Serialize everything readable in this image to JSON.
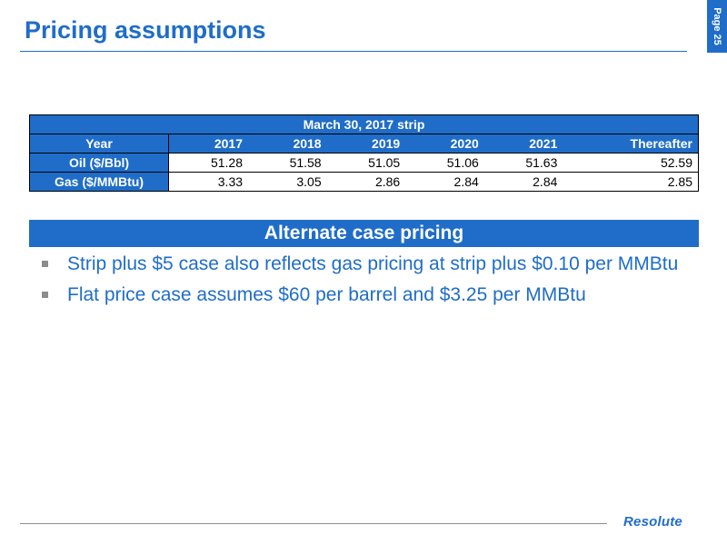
{
  "title": "Pricing assumptions",
  "page_label": "Page 25",
  "table": {
    "caption": "March 30, 2017 strip",
    "header_label": "Year",
    "years": [
      "2017",
      "2018",
      "2019",
      "2020",
      "2021",
      "Thereafter"
    ],
    "rows": [
      {
        "label": "Oil ($/Bbl)",
        "values": [
          "51.28",
          "51.58",
          "51.05",
          "51.06",
          "51.63",
          "52.59"
        ]
      },
      {
        "label": "Gas ($/MMBtu)",
        "values": [
          "3.33",
          "3.05",
          "2.86",
          "2.84",
          "2.84",
          "2.85"
        ]
      }
    ]
  },
  "alternate": {
    "heading": "Alternate case pricing",
    "bullets": [
      "Strip plus $5 case also reflects gas pricing at strip plus $0.10 per MMBtu",
      "Flat price case assumes $60 per barrel and $3.25 per MMBtu"
    ]
  },
  "logo_text": "Resolute",
  "colors": {
    "accent": "#1f6dc9",
    "bullet": "#8c8c8c"
  }
}
